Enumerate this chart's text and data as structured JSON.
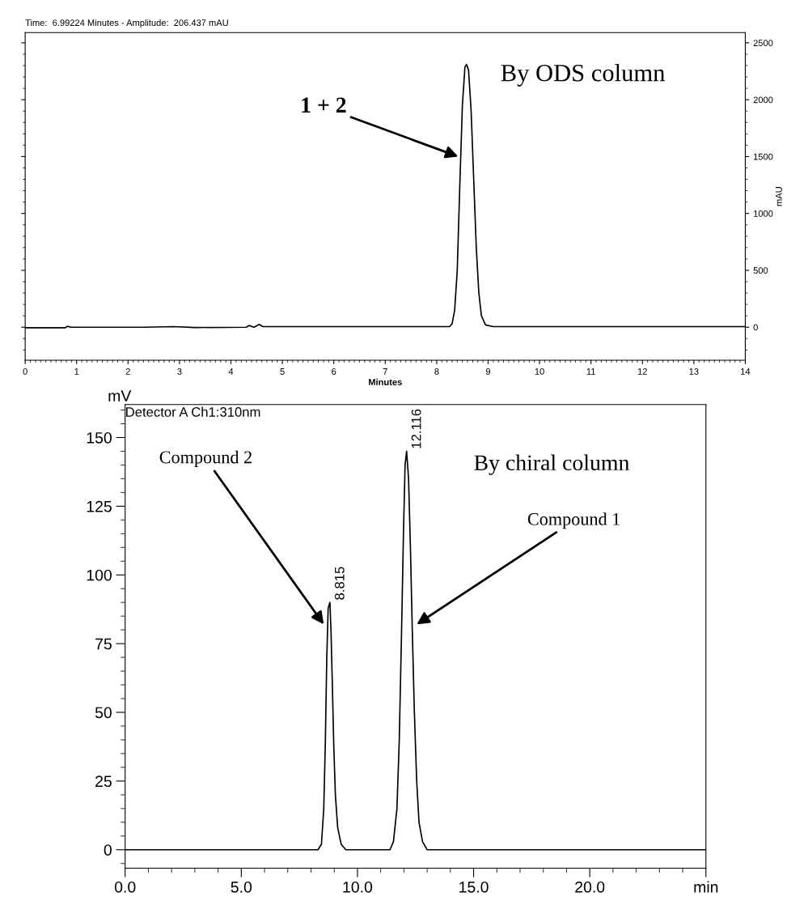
{
  "chart_data": [
    {
      "type": "line",
      "title": "Time:  6.99224 Minutes - Amplitude:  206.437 mAU",
      "xlabel": "Minutes",
      "ylabel": "mAU",
      "x": [
        0,
        0.78,
        0.82,
        0.9,
        2.3,
        2.9,
        3.3,
        4.3,
        4.35,
        4.45,
        4.55,
        4.62,
        8.0,
        8.25,
        8.3,
        8.35,
        8.4,
        8.45,
        8.5,
        8.55,
        8.58,
        8.62,
        8.67,
        8.72,
        8.77,
        8.82,
        8.87,
        8.95,
        9.1,
        14
      ],
      "series": [
        {
          "color": "#000000",
          "values": [
            -5,
            -5,
            8,
            0,
            0,
            5,
            -3,
            0,
            15,
            0,
            25,
            5,
            5,
            5,
            30,
            150,
            500,
            1250,
            1950,
            2290,
            2310,
            2260,
            1900,
            1300,
            700,
            300,
            100,
            20,
            5,
            5
          ]
        }
      ],
      "xlim": [
        0,
        14
      ],
      "xticks": [
        0,
        1,
        2,
        3,
        4,
        5,
        6,
        7,
        8,
        9,
        10,
        11,
        12,
        13,
        14
      ],
      "ylim": [
        -290,
        2590
      ],
      "yticks": [
        0,
        500,
        1000,
        1500,
        2000,
        2500
      ],
      "annotations": [
        {
          "text": "1 + 2",
          "x": 8.42,
          "y": 1500
        },
        "By ODS column"
      ]
    },
    {
      "type": "line",
      "ylabel": "mV",
      "x": [
        0,
        8.3,
        8.45,
        8.55,
        8.62,
        8.68,
        8.74,
        8.815,
        8.86,
        8.92,
        8.98,
        9.05,
        9.15,
        9.3,
        9.5,
        11.4,
        11.55,
        11.7,
        11.8,
        11.9,
        11.98,
        12.05,
        12.116,
        12.2,
        12.28,
        12.36,
        12.45,
        12.55,
        12.65,
        12.8,
        13.0,
        25
      ],
      "series": [
        {
          "color": "#000000",
          "values": [
            0,
            0,
            2,
            15,
            40,
            70,
            88,
            90,
            80,
            60,
            38,
            20,
            8,
            2,
            0,
            0,
            3,
            15,
            40,
            80,
            115,
            140,
            145,
            135,
            110,
            80,
            50,
            25,
            10,
            3,
            0,
            0
          ]
        }
      ],
      "xlim": [
        0,
        25
      ],
      "xticks": [
        {
          "value": 0,
          "label": "0.0"
        },
        {
          "value": 5,
          "label": "5.0"
        },
        {
          "value": 10,
          "label": "10.0"
        },
        {
          "value": 15,
          "label": "15.0"
        },
        {
          "value": 20,
          "label": "20.0"
        },
        {
          "value": 25,
          "label": "min"
        }
      ],
      "ylim": [
        -6.7,
        162
      ],
      "yticks": [
        0,
        25,
        50,
        75,
        100,
        125,
        150
      ],
      "annotations": [
        "Detector A Ch1:310nm",
        {
          "text": "8.815",
          "x": 8.815,
          "y": 90
        },
        {
          "text": "12.116",
          "x": 12.116,
          "y": 145
        },
        "By chiral column",
        {
          "text": "Compound 2",
          "x": 8.55,
          "y": 82
        },
        {
          "text": "Compound 1",
          "x": 12.55,
          "y": 82
        }
      ]
    }
  ]
}
